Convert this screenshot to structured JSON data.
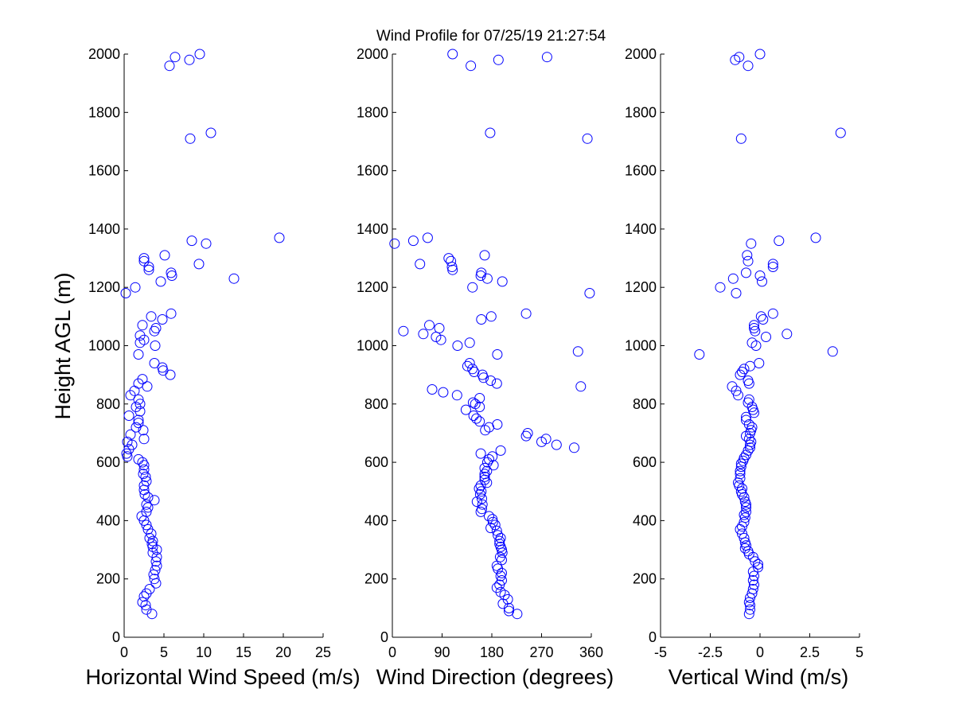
{
  "figure": {
    "title": "Wind Profile for  07/25/19 21:27:54",
    "ylabel": "Height AGL (m)"
  },
  "colors": {
    "marker": "#0000ff",
    "axes": "#000000",
    "background": "#ffffff"
  },
  "chart_data": [
    {
      "type": "scatter",
      "xlabel": "Horizontal Wind Speed (m/s)",
      "ylabel": "Height AGL (m)",
      "xlim": [
        0,
        25
      ],
      "ylim": [
        0,
        2000
      ],
      "xticks": [
        "0",
        "5",
        "10",
        "15",
        "20",
        "25"
      ],
      "yticks": [
        "0",
        "200",
        "400",
        "600",
        "800",
        "1000",
        "1200",
        "1400",
        "1600",
        "1800",
        "2000"
      ],
      "grid": false,
      "points": [
        [
          3.5,
          80
        ],
        [
          2.8,
          95
        ],
        [
          2.7,
          110
        ],
        [
          2.3,
          120
        ],
        [
          2.5,
          140
        ],
        [
          2.8,
          150
        ],
        [
          3.2,
          165
        ],
        [
          4.0,
          185
        ],
        [
          3.8,
          200
        ],
        [
          3.7,
          215
        ],
        [
          3.9,
          230
        ],
        [
          4.1,
          245
        ],
        [
          4.0,
          260
        ],
        [
          4.1,
          275
        ],
        [
          3.6,
          290
        ],
        [
          4.1,
          300
        ],
        [
          3.6,
          310
        ],
        [
          3.5,
          320
        ],
        [
          3.6,
          330
        ],
        [
          3.2,
          340
        ],
        [
          3.4,
          355
        ],
        [
          3.0,
          370
        ],
        [
          2.8,
          385
        ],
        [
          2.5,
          400
        ],
        [
          2.2,
          415
        ],
        [
          2.8,
          430
        ],
        [
          3.0,
          445
        ],
        [
          2.8,
          455
        ],
        [
          3.8,
          470
        ],
        [
          3.0,
          480
        ],
        [
          2.6,
          490
        ],
        [
          2.5,
          505
        ],
        [
          2.5,
          520
        ],
        [
          2.8,
          535
        ],
        [
          2.7,
          550
        ],
        [
          2.4,
          560
        ],
        [
          2.5,
          575
        ],
        [
          2.5,
          590
        ],
        [
          2.3,
          600
        ],
        [
          1.8,
          610
        ],
        [
          0.4,
          620
        ],
        [
          0.3,
          630
        ],
        [
          0.6,
          645
        ],
        [
          1.0,
          660
        ],
        [
          0.4,
          670
        ],
        [
          2.5,
          680
        ],
        [
          0.8,
          695
        ],
        [
          2.4,
          710
        ],
        [
          1.5,
          720
        ],
        [
          1.8,
          735
        ],
        [
          1.8,
          745
        ],
        [
          0.6,
          760
        ],
        [
          2.0,
          775
        ],
        [
          1.5,
          790
        ],
        [
          2.0,
          800
        ],
        [
          1.8,
          815
        ],
        [
          0.8,
          830
        ],
        [
          1.3,
          845
        ],
        [
          2.9,
          860
        ],
        [
          1.8,
          870
        ],
        [
          2.3,
          885
        ],
        [
          5.8,
          900
        ],
        [
          4.9,
          915
        ],
        [
          4.8,
          925
        ],
        [
          3.8,
          940
        ],
        [
          1.8,
          970
        ],
        [
          3.9,
          1000
        ],
        [
          2.0,
          1010
        ],
        [
          2.5,
          1020
        ],
        [
          2.0,
          1035
        ],
        [
          3.8,
          1050
        ],
        [
          4.0,
          1060
        ],
        [
          2.3,
          1070
        ],
        [
          4.8,
          1090
        ],
        [
          3.4,
          1100
        ],
        [
          5.9,
          1110
        ],
        [
          0.2,
          1180
        ],
        [
          1.4,
          1200
        ],
        [
          4.6,
          1220
        ],
        [
          13.8,
          1230
        ],
        [
          6.0,
          1240
        ],
        [
          5.9,
          1250
        ],
        [
          3.1,
          1260
        ],
        [
          3.1,
          1270
        ],
        [
          9.4,
          1280
        ],
        [
          2.5,
          1290
        ],
        [
          2.5,
          1300
        ],
        [
          5.1,
          1310
        ],
        [
          10.3,
          1350
        ],
        [
          8.5,
          1360
        ],
        [
          19.5,
          1370
        ],
        [
          8.3,
          1710
        ],
        [
          10.9,
          1730
        ],
        [
          5.7,
          1960
        ],
        [
          8.2,
          1980
        ],
        [
          6.4,
          1990
        ],
        [
          9.5,
          2000
        ]
      ]
    },
    {
      "type": "scatter",
      "xlabel": "Wind Direction (degrees)",
      "ylabel": "Height AGL (m)",
      "xlim": [
        0,
        360
      ],
      "ylim": [
        0,
        2000
      ],
      "xticks": [
        "0",
        "90",
        "180",
        "270",
        "360"
      ],
      "yticks": [
        "0",
        "200",
        "400",
        "600",
        "800",
        "1000",
        "1200",
        "1400",
        "1600",
        "1800",
        "2000"
      ],
      "grid": false,
      "points": [
        [
          226,
          80
        ],
        [
          211,
          90
        ],
        [
          211,
          100
        ],
        [
          200,
          115
        ],
        [
          209,
          130
        ],
        [
          203,
          145
        ],
        [
          196,
          155
        ],
        [
          189,
          170
        ],
        [
          194,
          180
        ],
        [
          198,
          195
        ],
        [
          196,
          210
        ],
        [
          198,
          220
        ],
        [
          191,
          235
        ],
        [
          189,
          245
        ],
        [
          198,
          265
        ],
        [
          195,
          275
        ],
        [
          199,
          290
        ],
        [
          198,
          300
        ],
        [
          196,
          310
        ],
        [
          194,
          320
        ],
        [
          194,
          330
        ],
        [
          196,
          340
        ],
        [
          191,
          350
        ],
        [
          189,
          365
        ],
        [
          178,
          375
        ],
        [
          186,
          385
        ],
        [
          182,
          395
        ],
        [
          181,
          405
        ],
        [
          175,
          415
        ],
        [
          160,
          430
        ],
        [
          162,
          440
        ],
        [
          163,
          455
        ],
        [
          153,
          465
        ],
        [
          162,
          475
        ],
        [
          159,
          490
        ],
        [
          161,
          500
        ],
        [
          157,
          510
        ],
        [
          160,
          520
        ],
        [
          171,
          530
        ],
        [
          167,
          540
        ],
        [
          167,
          550
        ],
        [
          167,
          560
        ],
        [
          171,
          570
        ],
        [
          167,
          580
        ],
        [
          183,
          590
        ],
        [
          172,
          600
        ],
        [
          175,
          610
        ],
        [
          181,
          620
        ],
        [
          160,
          630
        ],
        [
          196,
          640
        ],
        [
          297,
          660
        ],
        [
          329,
          650
        ],
        [
          270,
          670
        ],
        [
          278,
          680
        ],
        [
          242,
          690
        ],
        [
          245,
          700
        ],
        [
          168,
          710
        ],
        [
          175,
          720
        ],
        [
          190,
          730
        ],
        [
          158,
          740
        ],
        [
          152,
          750
        ],
        [
          147,
          760
        ],
        [
          133,
          780
        ],
        [
          158,
          790
        ],
        [
          150,
          800
        ],
        [
          146,
          805
        ],
        [
          158,
          820
        ],
        [
          117,
          830
        ],
        [
          92,
          840
        ],
        [
          72,
          850
        ],
        [
          189,
          870
        ],
        [
          165,
          890
        ],
        [
          178,
          880
        ],
        [
          341,
          860
        ],
        [
          163,
          900
        ],
        [
          148,
          910
        ],
        [
          145,
          920
        ],
        [
          136,
          930
        ],
        [
          140,
          940
        ],
        [
          190,
          970
        ],
        [
          336,
          980
        ],
        [
          140,
          1010
        ],
        [
          88,
          1020
        ],
        [
          118,
          1000
        ],
        [
          79,
          1030
        ],
        [
          56,
          1040
        ],
        [
          20,
          1050
        ],
        [
          85,
          1060
        ],
        [
          67,
          1070
        ],
        [
          161,
          1090
        ],
        [
          179,
          1100
        ],
        [
          242,
          1110
        ],
        [
          357,
          1180
        ],
        [
          145,
          1200
        ],
        [
          199,
          1220
        ],
        [
          172,
          1230
        ],
        [
          160,
          1240
        ],
        [
          161,
          1250
        ],
        [
          109,
          1260
        ],
        [
          108,
          1270
        ],
        [
          50,
          1280
        ],
        [
          106,
          1290
        ],
        [
          102,
          1300
        ],
        [
          167,
          1310
        ],
        [
          4,
          1350
        ],
        [
          38,
          1360
        ],
        [
          64,
          1370
        ],
        [
          353,
          1710
        ],
        [
          177,
          1730
        ],
        [
          142,
          1960
        ],
        [
          192,
          1980
        ],
        [
          280,
          1990
        ],
        [
          109,
          2000
        ]
      ]
    },
    {
      "type": "scatter",
      "xlabel": "Vertical Wind (m/s)",
      "ylabel": "Height AGL (m)",
      "xlim": [
        -5,
        5
      ],
      "ylim": [
        0,
        2000
      ],
      "xticks": [
        "-5",
        "-2.5",
        "0",
        "2.5",
        "5"
      ],
      "yticks": [
        "0",
        "200",
        "400",
        "600",
        "800",
        "1000",
        "1200",
        "1400",
        "1600",
        "1800",
        "2000"
      ],
      "grid": false,
      "points": [
        [
          -0.55,
          80
        ],
        [
          -0.5,
          95
        ],
        [
          -0.5,
          110
        ],
        [
          -0.55,
          120
        ],
        [
          -0.5,
          135
        ],
        [
          -0.4,
          150
        ],
        [
          -0.35,
          165
        ],
        [
          -0.3,
          180
        ],
        [
          -0.35,
          195
        ],
        [
          -0.3,
          210
        ],
        [
          -0.35,
          225
        ],
        [
          -0.1,
          240
        ],
        [
          -0.1,
          250
        ],
        [
          -0.25,
          260
        ],
        [
          -0.35,
          275
        ],
        [
          -0.55,
          285
        ],
        [
          -0.6,
          295
        ],
        [
          -0.75,
          305
        ],
        [
          -0.7,
          315
        ],
        [
          -0.75,
          325
        ],
        [
          -0.8,
          340
        ],
        [
          -0.9,
          355
        ],
        [
          -1.0,
          370
        ],
        [
          -0.9,
          380
        ],
        [
          -0.8,
          395
        ],
        [
          -0.75,
          410
        ],
        [
          -0.8,
          420
        ],
        [
          -0.7,
          430
        ],
        [
          -0.7,
          445
        ],
        [
          -0.7,
          455
        ],
        [
          -0.75,
          465
        ],
        [
          -0.8,
          480
        ],
        [
          -0.9,
          490
        ],
        [
          -0.95,
          500
        ],
        [
          -0.9,
          510
        ],
        [
          -1.05,
          520
        ],
        [
          -1.1,
          530
        ],
        [
          -1.0,
          545
        ],
        [
          -1.0,
          560
        ],
        [
          -1.0,
          570
        ],
        [
          -0.95,
          585
        ],
        [
          -0.95,
          595
        ],
        [
          -0.85,
          605
        ],
        [
          -0.8,
          615
        ],
        [
          -0.7,
          625
        ],
        [
          -0.6,
          640
        ],
        [
          -0.5,
          650
        ],
        [
          -0.5,
          660
        ],
        [
          -0.45,
          670
        ],
        [
          -0.55,
          680
        ],
        [
          -0.7,
          690
        ],
        [
          -0.5,
          700
        ],
        [
          -0.45,
          710
        ],
        [
          -0.4,
          720
        ],
        [
          -0.55,
          730
        ],
        [
          -0.7,
          745
        ],
        [
          -0.7,
          755
        ],
        [
          -0.3,
          770
        ],
        [
          -0.35,
          780
        ],
        [
          -0.4,
          790
        ],
        [
          -0.6,
          805
        ],
        [
          -0.55,
          815
        ],
        [
          -1.1,
          830
        ],
        [
          -1.2,
          845
        ],
        [
          -0.55,
          870
        ],
        [
          -1.4,
          860
        ],
        [
          -0.6,
          880
        ],
        [
          -1.0,
          900
        ],
        [
          -0.9,
          910
        ],
        [
          -0.8,
          920
        ],
        [
          -0.5,
          930
        ],
        [
          -0.05,
          940
        ],
        [
          -3.05,
          970
        ],
        [
          3.65,
          980
        ],
        [
          -0.4,
          1010
        ],
        [
          0.3,
          1030
        ],
        [
          -0.2,
          1000
        ],
        [
          1.35,
          1040
        ],
        [
          -0.25,
          1050
        ],
        [
          -0.3,
          1060
        ],
        [
          -0.3,
          1070
        ],
        [
          0.15,
          1090
        ],
        [
          0.05,
          1100
        ],
        [
          0.65,
          1110
        ],
        [
          -1.2,
          1180
        ],
        [
          -2.0,
          1200
        ],
        [
          0.1,
          1220
        ],
        [
          -1.35,
          1230
        ],
        [
          0.0,
          1240
        ],
        [
          -0.7,
          1250
        ],
        [
          0.65,
          1270
        ],
        [
          0.65,
          1280
        ],
        [
          -0.6,
          1290
        ],
        [
          -0.65,
          1310
        ],
        [
          -0.45,
          1350
        ],
        [
          0.95,
          1360
        ],
        [
          2.8,
          1370
        ],
        [
          -0.95,
          1710
        ],
        [
          4.05,
          1730
        ],
        [
          -0.6,
          1960
        ],
        [
          -1.25,
          1980
        ],
        [
          -1.05,
          1990
        ],
        [
          0.0,
          2000
        ]
      ]
    }
  ]
}
